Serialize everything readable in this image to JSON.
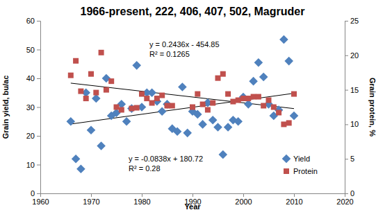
{
  "chart_data": {
    "type": "scatter",
    "title": "1966-present, 222, 406, 407, 502, Magruder",
    "x_label": "Year",
    "y_label": "Grain yield, bu/ac",
    "y2_label": "Grain protein, %",
    "xlim": [
      1960,
      2020
    ],
    "xticks": [
      1960,
      1970,
      1980,
      1990,
      2000,
      2010,
      2020
    ],
    "ylim": [
      0,
      60
    ],
    "yticks": [
      0,
      10,
      20,
      30,
      40,
      50,
      60
    ],
    "y2lim": [
      0,
      25
    ],
    "y2ticks": [
      0,
      5,
      10,
      15,
      20,
      25
    ],
    "grid": false,
    "legend": "right",
    "series": [
      {
        "name": "Yield",
        "color": "#4f81bd",
        "marker": "diamond",
        "axis": "y",
        "x": [
          1966,
          1967,
          1968,
          1969,
          1970,
          1971,
          1972,
          1973,
          1974,
          1975,
          1976,
          1977,
          1978,
          1979,
          1980,
          1981,
          1982,
          1983,
          1984,
          1985,
          1986,
          1987,
          1988,
          1989,
          1990,
          1991,
          1992,
          1993,
          1994,
          1995,
          1996,
          1997,
          1998,
          1999,
          2000,
          2001,
          2002,
          2003,
          2004,
          2005,
          2006,
          2007,
          2008,
          2009,
          2010
        ],
        "values": [
          25,
          12,
          8.5,
          35,
          22,
          33,
          16.5,
          40,
          27,
          28,
          31,
          25,
          29.5,
          44.5,
          30,
          35,
          35,
          32,
          28.5,
          31,
          22.5,
          21.5,
          37,
          21,
          28.5,
          27.5,
          24,
          31.5,
          25.5,
          23,
          13.5,
          23,
          25.5,
          25,
          33.5,
          31,
          39,
          45.5,
          40.5,
          31,
          27,
          29,
          53.5,
          46,
          27
        ],
        "trendline": {
          "x": [
            1966,
            2010
          ],
          "values": [
            24.1,
            34.8
          ]
        }
      },
      {
        "name": "Protein",
        "color": "#c0504d",
        "marker": "square",
        "axis": "y2",
        "x": [
          1966,
          1967,
          1968,
          1969,
          1970,
          1971,
          1972,
          1973,
          1974,
          1975,
          1976,
          1978,
          1979,
          1980,
          1981,
          1982,
          1983,
          1984,
          1985,
          1986,
          1990,
          1991,
          1992,
          1993,
          1994,
          1995,
          1996,
          1997,
          1998,
          1999,
          2000,
          2001,
          2002,
          2003,
          2004,
          2005,
          2006,
          2007,
          2008,
          2009,
          2010
        ],
        "values": [
          17.1,
          19.2,
          14.8,
          13.75,
          17.3,
          14.6,
          20.4,
          15,
          16.25,
          12.5,
          12.1,
          12.3,
          12.4,
          14.4,
          13.75,
          13.1,
          13.75,
          14.2,
          12.7,
          12.7,
          12.5,
          14.4,
          12.9,
          12.1,
          13.1,
          16.7,
          17.3,
          14.4,
          13.3,
          13.5,
          13.75,
          13.75,
          14,
          14,
          12.7,
          13.5,
          12.5,
          11.7,
          10,
          10.2,
          14.4
        ],
        "trendline": {
          "x": [
            1966,
            2010
          ],
          "values": [
            15.97,
            12.28
          ]
        }
      }
    ],
    "annotations": [
      "y = 0.2436x - 454.85",
      "R² = 0.1265",
      "y = -0.0838x + 180.72",
      "R² = 0.28"
    ]
  }
}
